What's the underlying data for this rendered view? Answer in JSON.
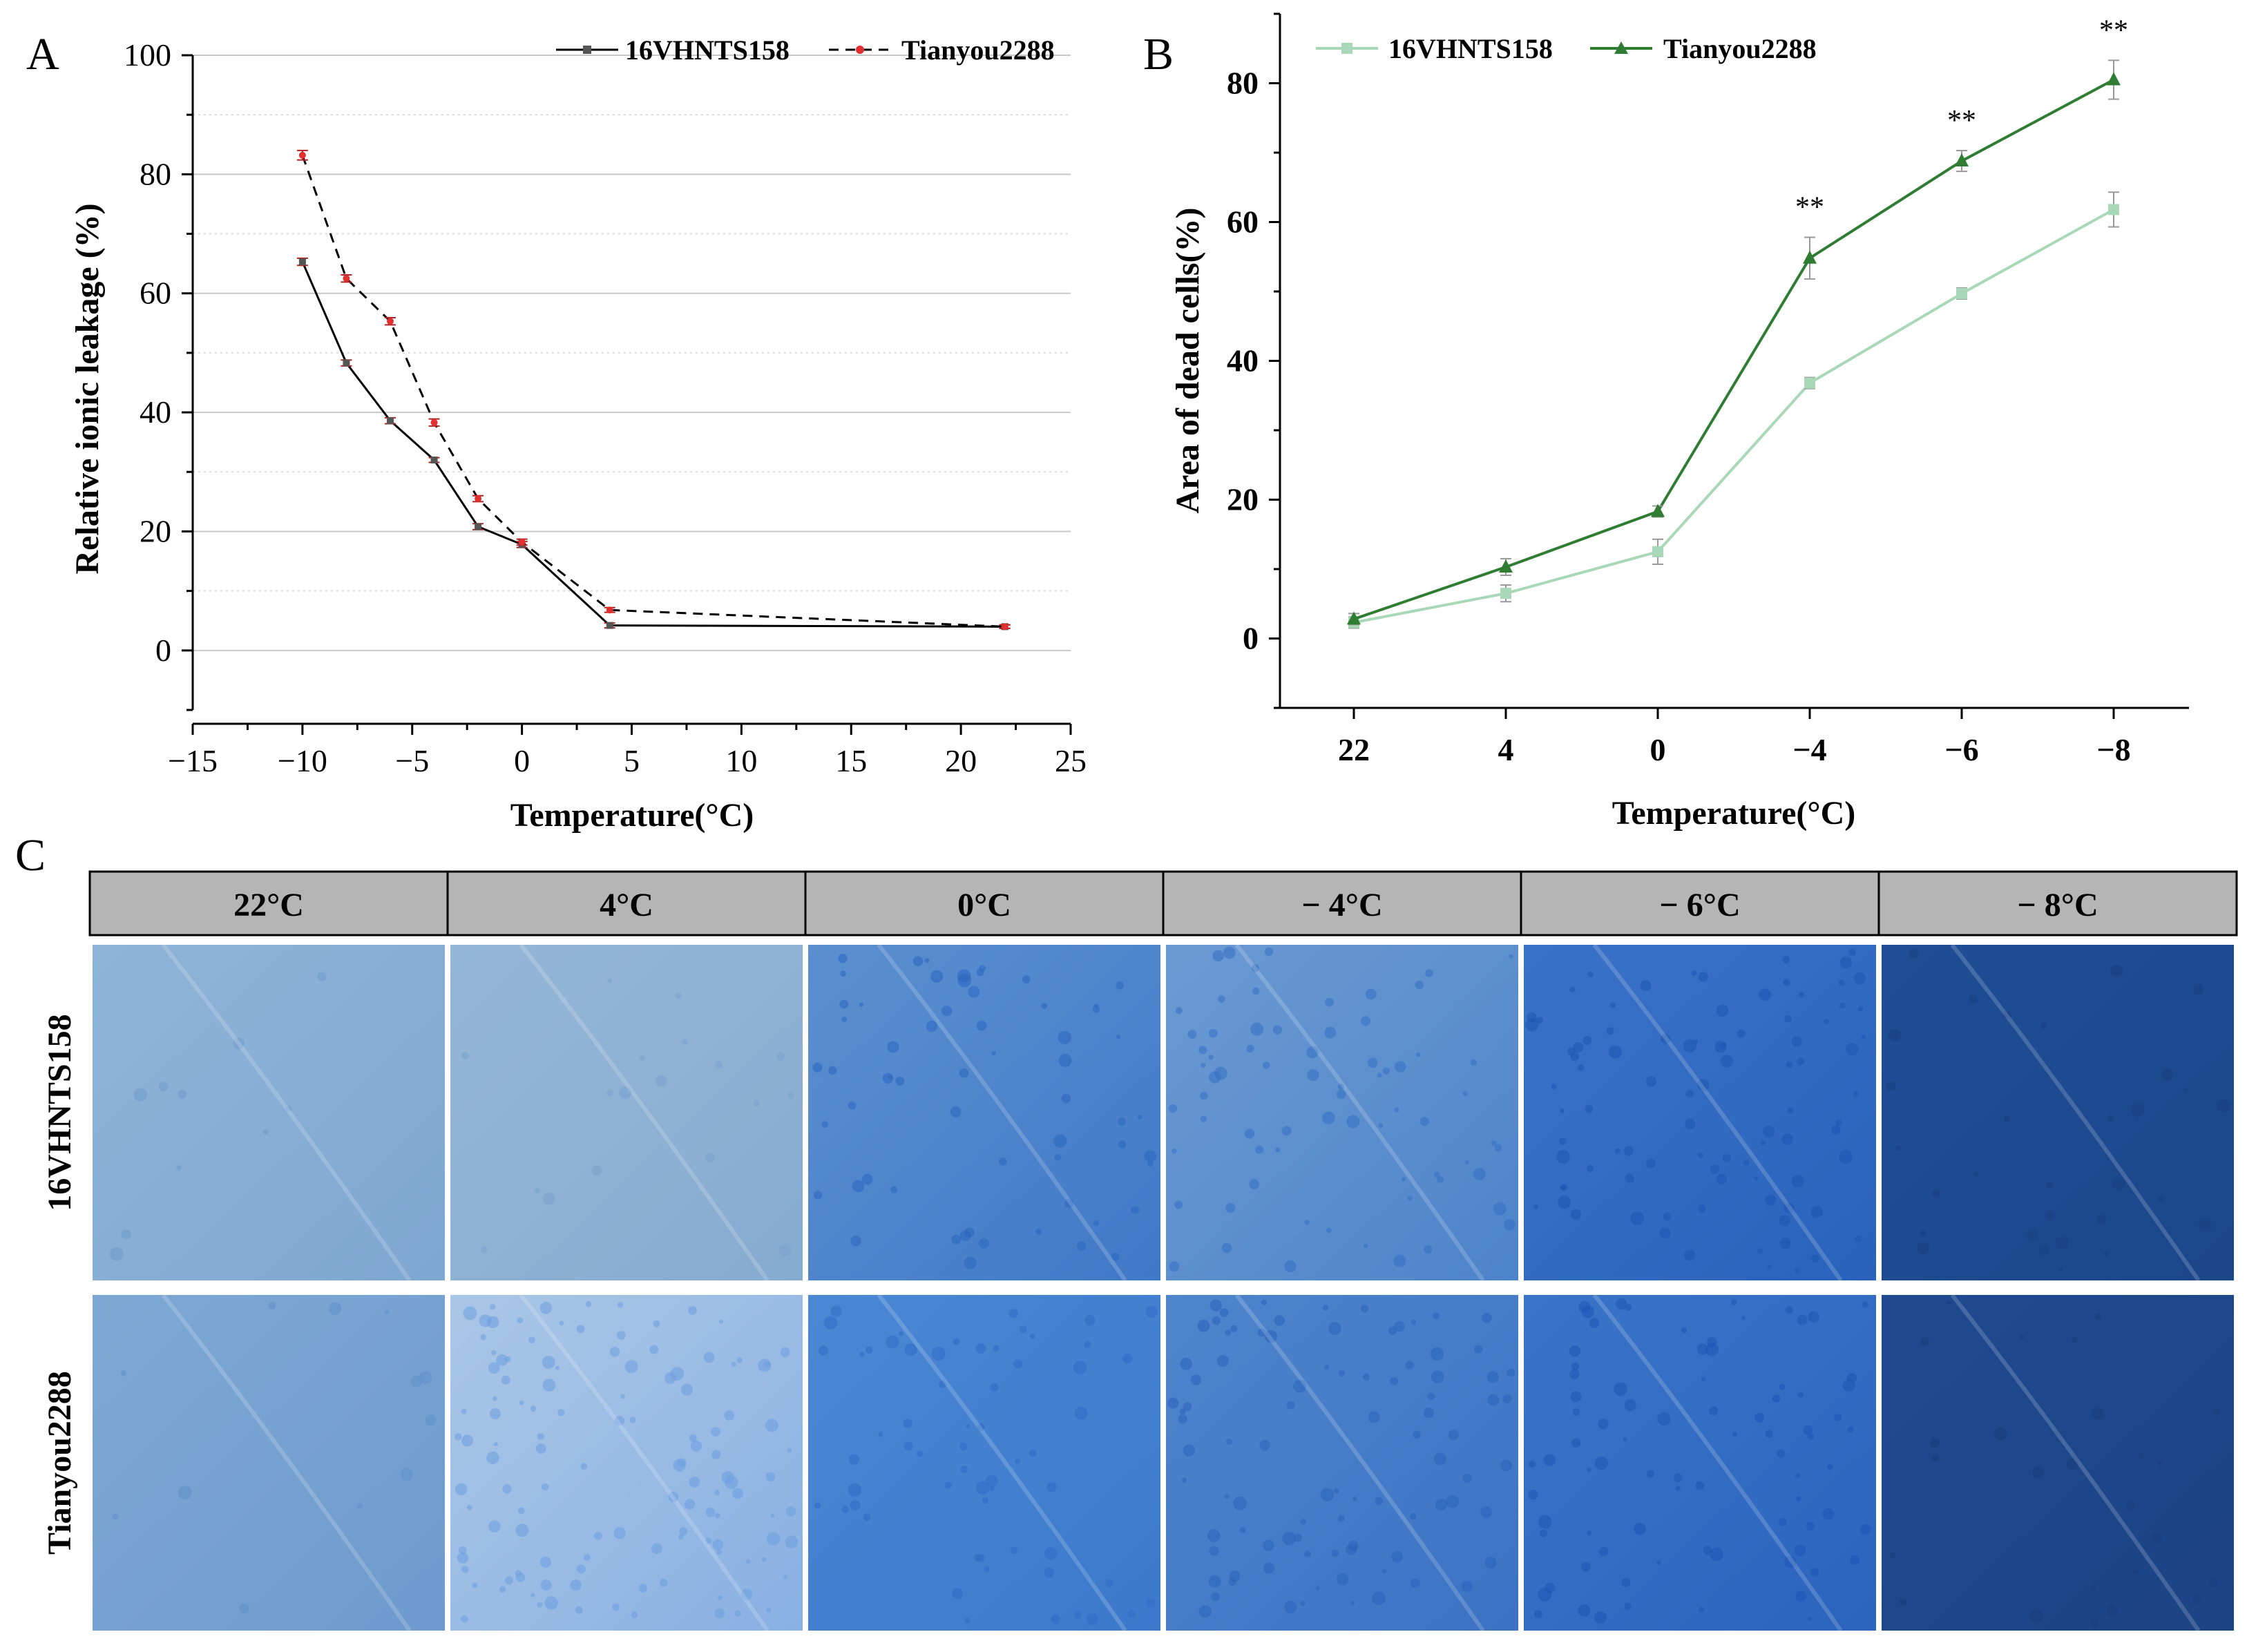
{
  "figure": {
    "panel_labels": [
      "A",
      "B",
      "C"
    ]
  },
  "chart_data": [
    {
      "panel": "A",
      "type": "line",
      "title": "",
      "xlabel": "Temperature(°C)",
      "ylabel": "Relative ionic leakage (%)",
      "xlim": [
        -15,
        25
      ],
      "ylim": [
        -10,
        100
      ],
      "xticks": [
        -15,
        -10,
        -5,
        0,
        5,
        10,
        15,
        20,
        25
      ],
      "xtick_labels": [
        "−15",
        "−10",
        "−5",
        "0",
        "5",
        "10",
        "15",
        "20",
        "25"
      ],
      "yticks": [
        0,
        20,
        40,
        60,
        80,
        100
      ],
      "ytick_labels": [
        "0",
        "20",
        "40",
        "60",
        "80",
        "100"
      ],
      "grid": "horizontal",
      "legend_position": "top-right",
      "series": [
        {
          "name": "16VHNTS158",
          "color": "#000000",
          "marker_color": "#555555",
          "dash": "solid",
          "x": [
            -10,
            -8,
            -6,
            -4,
            -2,
            0,
            4,
            22
          ],
          "y": [
            65.3,
            48.3,
            38.6,
            32.0,
            20.8,
            17.8,
            4.2,
            4.0
          ],
          "err": [
            0.6,
            0.5,
            0.5,
            0.4,
            0.5,
            0.5,
            0.4,
            0.3
          ]
        },
        {
          "name": "Tianyou2288",
          "color": "#000000",
          "marker_color": "#e03030",
          "dash": "dashed",
          "x": [
            -10,
            -8,
            -6,
            -4,
            -2,
            0,
            4,
            22
          ],
          "y": [
            83.2,
            62.5,
            55.3,
            38.3,
            25.5,
            18.2,
            6.8,
            4.0
          ],
          "err": [
            0.8,
            0.6,
            0.6,
            0.6,
            0.5,
            0.5,
            0.4,
            0.3
          ]
        }
      ]
    },
    {
      "panel": "B",
      "type": "line",
      "title": "",
      "xlabel": "Temperature(°C)",
      "ylabel": "Area of dead cells(%)",
      "categories": [
        "22",
        "4",
        "0",
        "−4",
        "−6",
        "−8"
      ],
      "ylim": [
        -10,
        90
      ],
      "yticks": [
        0,
        20,
        40,
        60,
        80
      ],
      "ytick_labels": [
        "0",
        "20",
        "40",
        "60",
        "80"
      ],
      "grid": "off",
      "legend_position": "top-left",
      "significance": [
        "",
        "",
        "",
        "**",
        "**",
        "**"
      ],
      "series": [
        {
          "name": "16VHNTS158",
          "color": "#a8d8b8",
          "marker": "square",
          "values": [
            2.3,
            6.5,
            12.5,
            36.8,
            49.7,
            61.8
          ],
          "err": [
            0.8,
            1.2,
            1.8,
            0.8,
            0.8,
            2.5
          ]
        },
        {
          "name": "Tianyou2288",
          "color": "#2e7d32",
          "marker": "triangle",
          "values": [
            2.8,
            10.3,
            18.3,
            54.8,
            68.8,
            80.5
          ],
          "err": [
            0.8,
            1.2,
            0.8,
            3.0,
            1.5,
            2.8
          ]
        }
      ]
    }
  ],
  "panel_c": {
    "columns": [
      "22°C",
      "4°C",
      "0°C",
      "− 4°C",
      "− 6°C",
      "− 8°C"
    ],
    "rows": [
      {
        "label": "16VHNTS158",
        "tiles": [
          {
            "base": "#8fb4d8",
            "spot": "#6f9ccc",
            "density": 10
          },
          {
            "base": "#95b6d6",
            "spot": "#7aa2cc",
            "density": 18
          },
          {
            "base": "#5b8fd0",
            "spot": "#2a66c0",
            "density": 60
          },
          {
            "base": "#6b9ad2",
            "spot": "#3470c4",
            "density": 70
          },
          {
            "base": "#3a72c8",
            "spot": "#1b55b0",
            "density": 90
          },
          {
            "base": "#1f4e96",
            "spot": "#173f80",
            "density": 30
          }
        ]
      },
      {
        "label": "Tianyou2288",
        "tiles": [
          {
            "base": "#7ea8d4",
            "spot": "#5f90c8",
            "density": 12
          },
          {
            "base": "#aac6e6",
            "spot": "#6c9ee0",
            "density": 120
          },
          {
            "base": "#4a88d4",
            "spot": "#2f6cc4",
            "density": 60
          },
          {
            "base": "#4f85cc",
            "spot": "#2a62bc",
            "density": 90
          },
          {
            "base": "#3a74c8",
            "spot": "#1d56b4",
            "density": 80
          },
          {
            "base": "#1f4a90",
            "spot": "#183e7c",
            "density": 25
          }
        ]
      }
    ]
  }
}
